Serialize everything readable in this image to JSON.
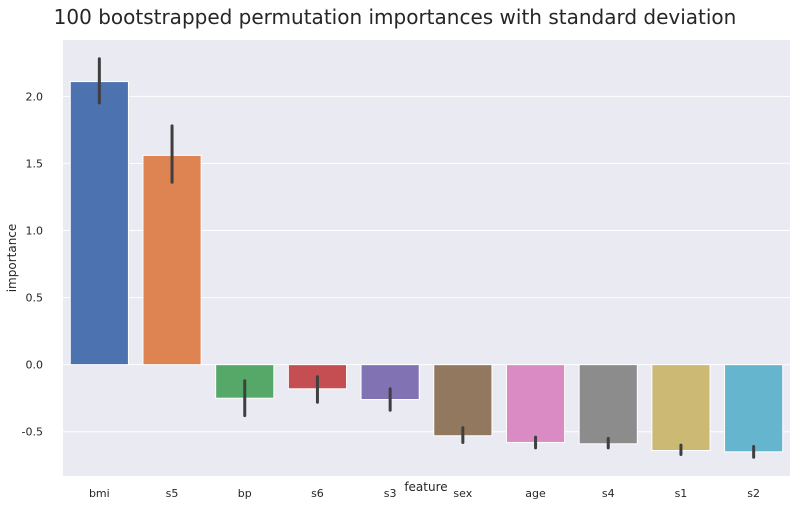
{
  "chart_data": {
    "type": "bar",
    "title": "100 bootstrapped permutation importances with standard deviation",
    "xlabel": "feature",
    "ylabel": "importance",
    "ylim": [
      -0.83,
      2.42
    ],
    "yticks": [
      -0.5,
      0.0,
      0.5,
      1.0,
      1.5,
      2.0
    ],
    "ytick_labels": [
      "-0.5",
      "0.0",
      "0.5",
      "1.0",
      "1.5",
      "2.0"
    ],
    "grid": true,
    "categories": [
      "bmi",
      "s5",
      "bp",
      "s6",
      "s3",
      "sex",
      "age",
      "s4",
      "s1",
      "s2"
    ],
    "values": [
      2.11,
      1.56,
      -0.25,
      -0.18,
      -0.26,
      -0.53,
      -0.58,
      -0.59,
      -0.64,
      -0.65
    ],
    "error_low": [
      1.95,
      1.36,
      -0.38,
      -0.28,
      -0.34,
      -0.58,
      -0.62,
      -0.62,
      -0.67,
      -0.69
    ],
    "error_high": [
      2.28,
      1.78,
      -0.12,
      -0.09,
      -0.18,
      -0.47,
      -0.54,
      -0.55,
      -0.6,
      -0.61
    ],
    "colors": [
      "#4c72b0",
      "#dd8452",
      "#55a868",
      "#c44e52",
      "#8172b3",
      "#937860",
      "#da8bc3",
      "#8c8c8c",
      "#ccb974",
      "#64b5cd"
    ],
    "background_color": "#eaeaf2",
    "grid_color": "#ffffff",
    "errorbar_color": "#3f3f3f"
  }
}
